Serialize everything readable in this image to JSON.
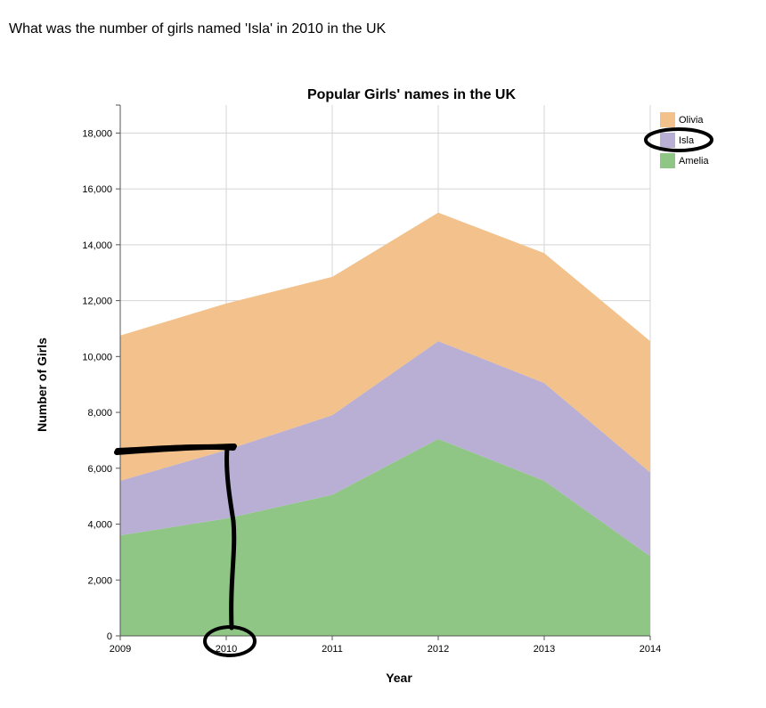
{
  "question": "What was the number of girls named 'Isla' in 2010 in the UK",
  "chart_data": {
    "type": "area",
    "stacked": true,
    "title": "Popular Girls' names in the UK",
    "xlabel": "Year",
    "ylabel": "Number of Girls",
    "x": [
      "2009",
      "2010",
      "2011",
      "2012",
      "2013",
      "2014"
    ],
    "ylim": [
      0,
      19000
    ],
    "yticks": [
      0,
      2000,
      4000,
      6000,
      8000,
      10000,
      12000,
      14000,
      16000,
      18000
    ],
    "ytick_labels": [
      "0",
      "2,000",
      "4,000",
      "6,000",
      "8,000",
      "10,000",
      "12,000",
      "14,000",
      "16,000",
      "18,000"
    ],
    "grid": true,
    "legend_position": "top-right",
    "series": [
      {
        "name": "Amelia",
        "color": "#8fc685",
        "values": [
          3600,
          4200,
          5050,
          7050,
          5550,
          2850
        ]
      },
      {
        "name": "Isla",
        "color": "#b9aed4",
        "values": [
          1950,
          2450,
          2850,
          3500,
          3500,
          3000
        ]
      },
      {
        "name": "Olivia",
        "color": "#f2c18c",
        "values": [
          5200,
          5250,
          4950,
          4600,
          4650,
          4700
        ]
      }
    ],
    "legend_order": [
      "Olivia",
      "Isla",
      "Amelia"
    ]
  },
  "annotations": {
    "stroke_color": "#000000",
    "description_icon": "hand-drawn-marker-icon"
  }
}
